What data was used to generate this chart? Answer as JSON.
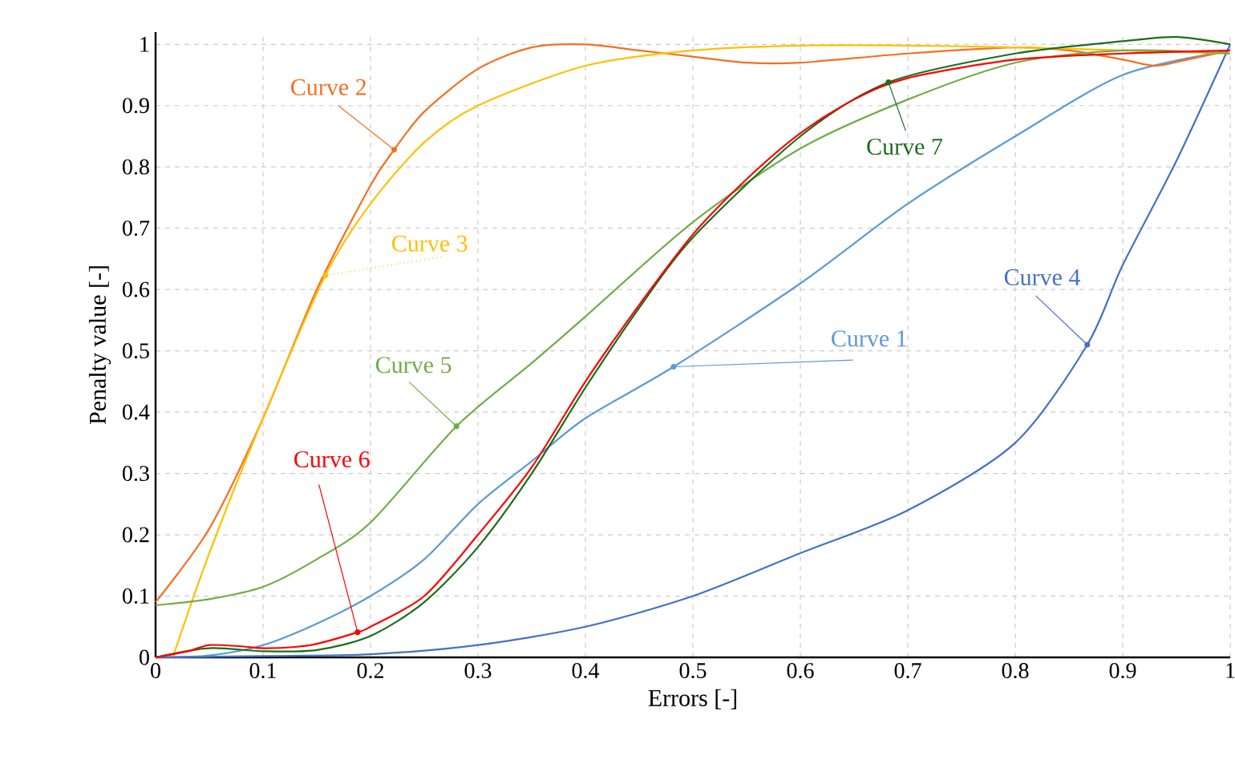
{
  "chart_data": {
    "type": "line",
    "xlabel": "Errors [-]",
    "ylabel": "Penalty value [-]",
    "xlim": [
      0,
      1
    ],
    "ylim": [
      0,
      1.02
    ],
    "xticks": [
      0,
      0.1,
      0.2,
      0.3,
      0.4,
      0.5,
      0.6,
      0.7,
      0.8,
      0.9,
      1
    ],
    "yticks": [
      0,
      0.1,
      0.2,
      0.3,
      0.4,
      0.5,
      0.6,
      0.7,
      0.8,
      0.9,
      1
    ],
    "grid": true,
    "series": [
      {
        "name": "Curve 1",
        "color": "#5b9bd5",
        "x": [
          0,
          0.05,
          0.1,
          0.15,
          0.2,
          0.25,
          0.3,
          0.35,
          0.4,
          0.482,
          0.6,
          0.7,
          0.8,
          0.9,
          1
        ],
        "values": [
          0,
          0.003,
          0.02,
          0.055,
          0.1,
          0.16,
          0.25,
          0.32,
          0.39,
          0.474,
          0.61,
          0.74,
          0.85,
          0.95,
          0.99
        ]
      },
      {
        "name": "Curve 2",
        "color": "#f47021",
        "x": [
          0,
          0.05,
          0.1,
          0.15,
          0.2,
          0.222,
          0.25,
          0.3,
          0.35,
          0.4,
          0.45,
          0.5,
          0.55,
          0.6,
          0.7,
          0.8,
          0.85,
          0.9,
          0.93,
          0.96,
          1
        ],
        "values": [
          0.09,
          0.21,
          0.39,
          0.6,
          0.77,
          0.828,
          0.89,
          0.96,
          0.995,
          1.0,
          0.99,
          0.98,
          0.97,
          0.97,
          0.985,
          0.995,
          0.99,
          0.975,
          0.965,
          0.975,
          0.99
        ]
      },
      {
        "name": "Curve 3",
        "color": "#ffc000",
        "x": [
          0.016,
          0.05,
          0.1,
          0.158,
          0.2,
          0.25,
          0.3,
          0.4,
          0.5,
          0.6,
          0.7,
          0.8,
          0.9,
          1
        ],
        "values": [
          0,
          0.17,
          0.39,
          0.623,
          0.74,
          0.84,
          0.9,
          0.965,
          0.99,
          0.998,
          0.998,
          0.995,
          0.99,
          0.985
        ]
      },
      {
        "name": "Curve 4",
        "color": "#4472c4",
        "x": [
          0,
          0.1,
          0.2,
          0.3,
          0.4,
          0.5,
          0.6,
          0.7,
          0.8,
          0.867,
          0.9,
          0.95,
          1
        ],
        "values": [
          0,
          0.002,
          0.005,
          0.02,
          0.05,
          0.1,
          0.17,
          0.24,
          0.35,
          0.51,
          0.64,
          0.81,
          1.0
        ]
      },
      {
        "name": "Curve 5",
        "color": "#70ad47",
        "x": [
          0,
          0.05,
          0.1,
          0.15,
          0.2,
          0.28,
          0.35,
          0.4,
          0.5,
          0.6,
          0.7,
          0.8,
          0.9,
          1
        ],
        "values": [
          0.085,
          0.095,
          0.115,
          0.16,
          0.22,
          0.377,
          0.48,
          0.556,
          0.71,
          0.83,
          0.91,
          0.97,
          0.99,
          0.985
        ]
      },
      {
        "name": "Curve 7",
        "color": "#1a6f1a",
        "x": [
          0,
          0.05,
          0.1,
          0.15,
          0.2,
          0.25,
          0.3,
          0.35,
          0.4,
          0.45,
          0.5,
          0.6,
          0.682,
          0.8,
          0.9,
          0.95,
          1
        ],
        "values": [
          0,
          0.015,
          0.01,
          0.012,
          0.035,
          0.09,
          0.18,
          0.3,
          0.44,
          0.57,
          0.685,
          0.85,
          0.938,
          0.985,
          1.005,
          1.012,
          1.0
        ]
      },
      {
        "name": "Curve 6",
        "color": "#ff0000",
        "x": [
          0,
          0.03,
          0.05,
          0.08,
          0.1,
          0.13,
          0.15,
          0.188,
          0.2,
          0.25,
          0.3,
          0.35,
          0.4,
          0.45,
          0.5,
          0.55,
          0.6,
          0.65,
          0.7,
          0.8,
          0.9,
          1
        ],
        "values": [
          0,
          0.01,
          0.02,
          0.018,
          0.015,
          0.017,
          0.022,
          0.041,
          0.05,
          0.1,
          0.2,
          0.31,
          0.45,
          0.575,
          0.69,
          0.78,
          0.855,
          0.91,
          0.945,
          0.975,
          0.985,
          0.99
        ]
      }
    ]
  }
}
